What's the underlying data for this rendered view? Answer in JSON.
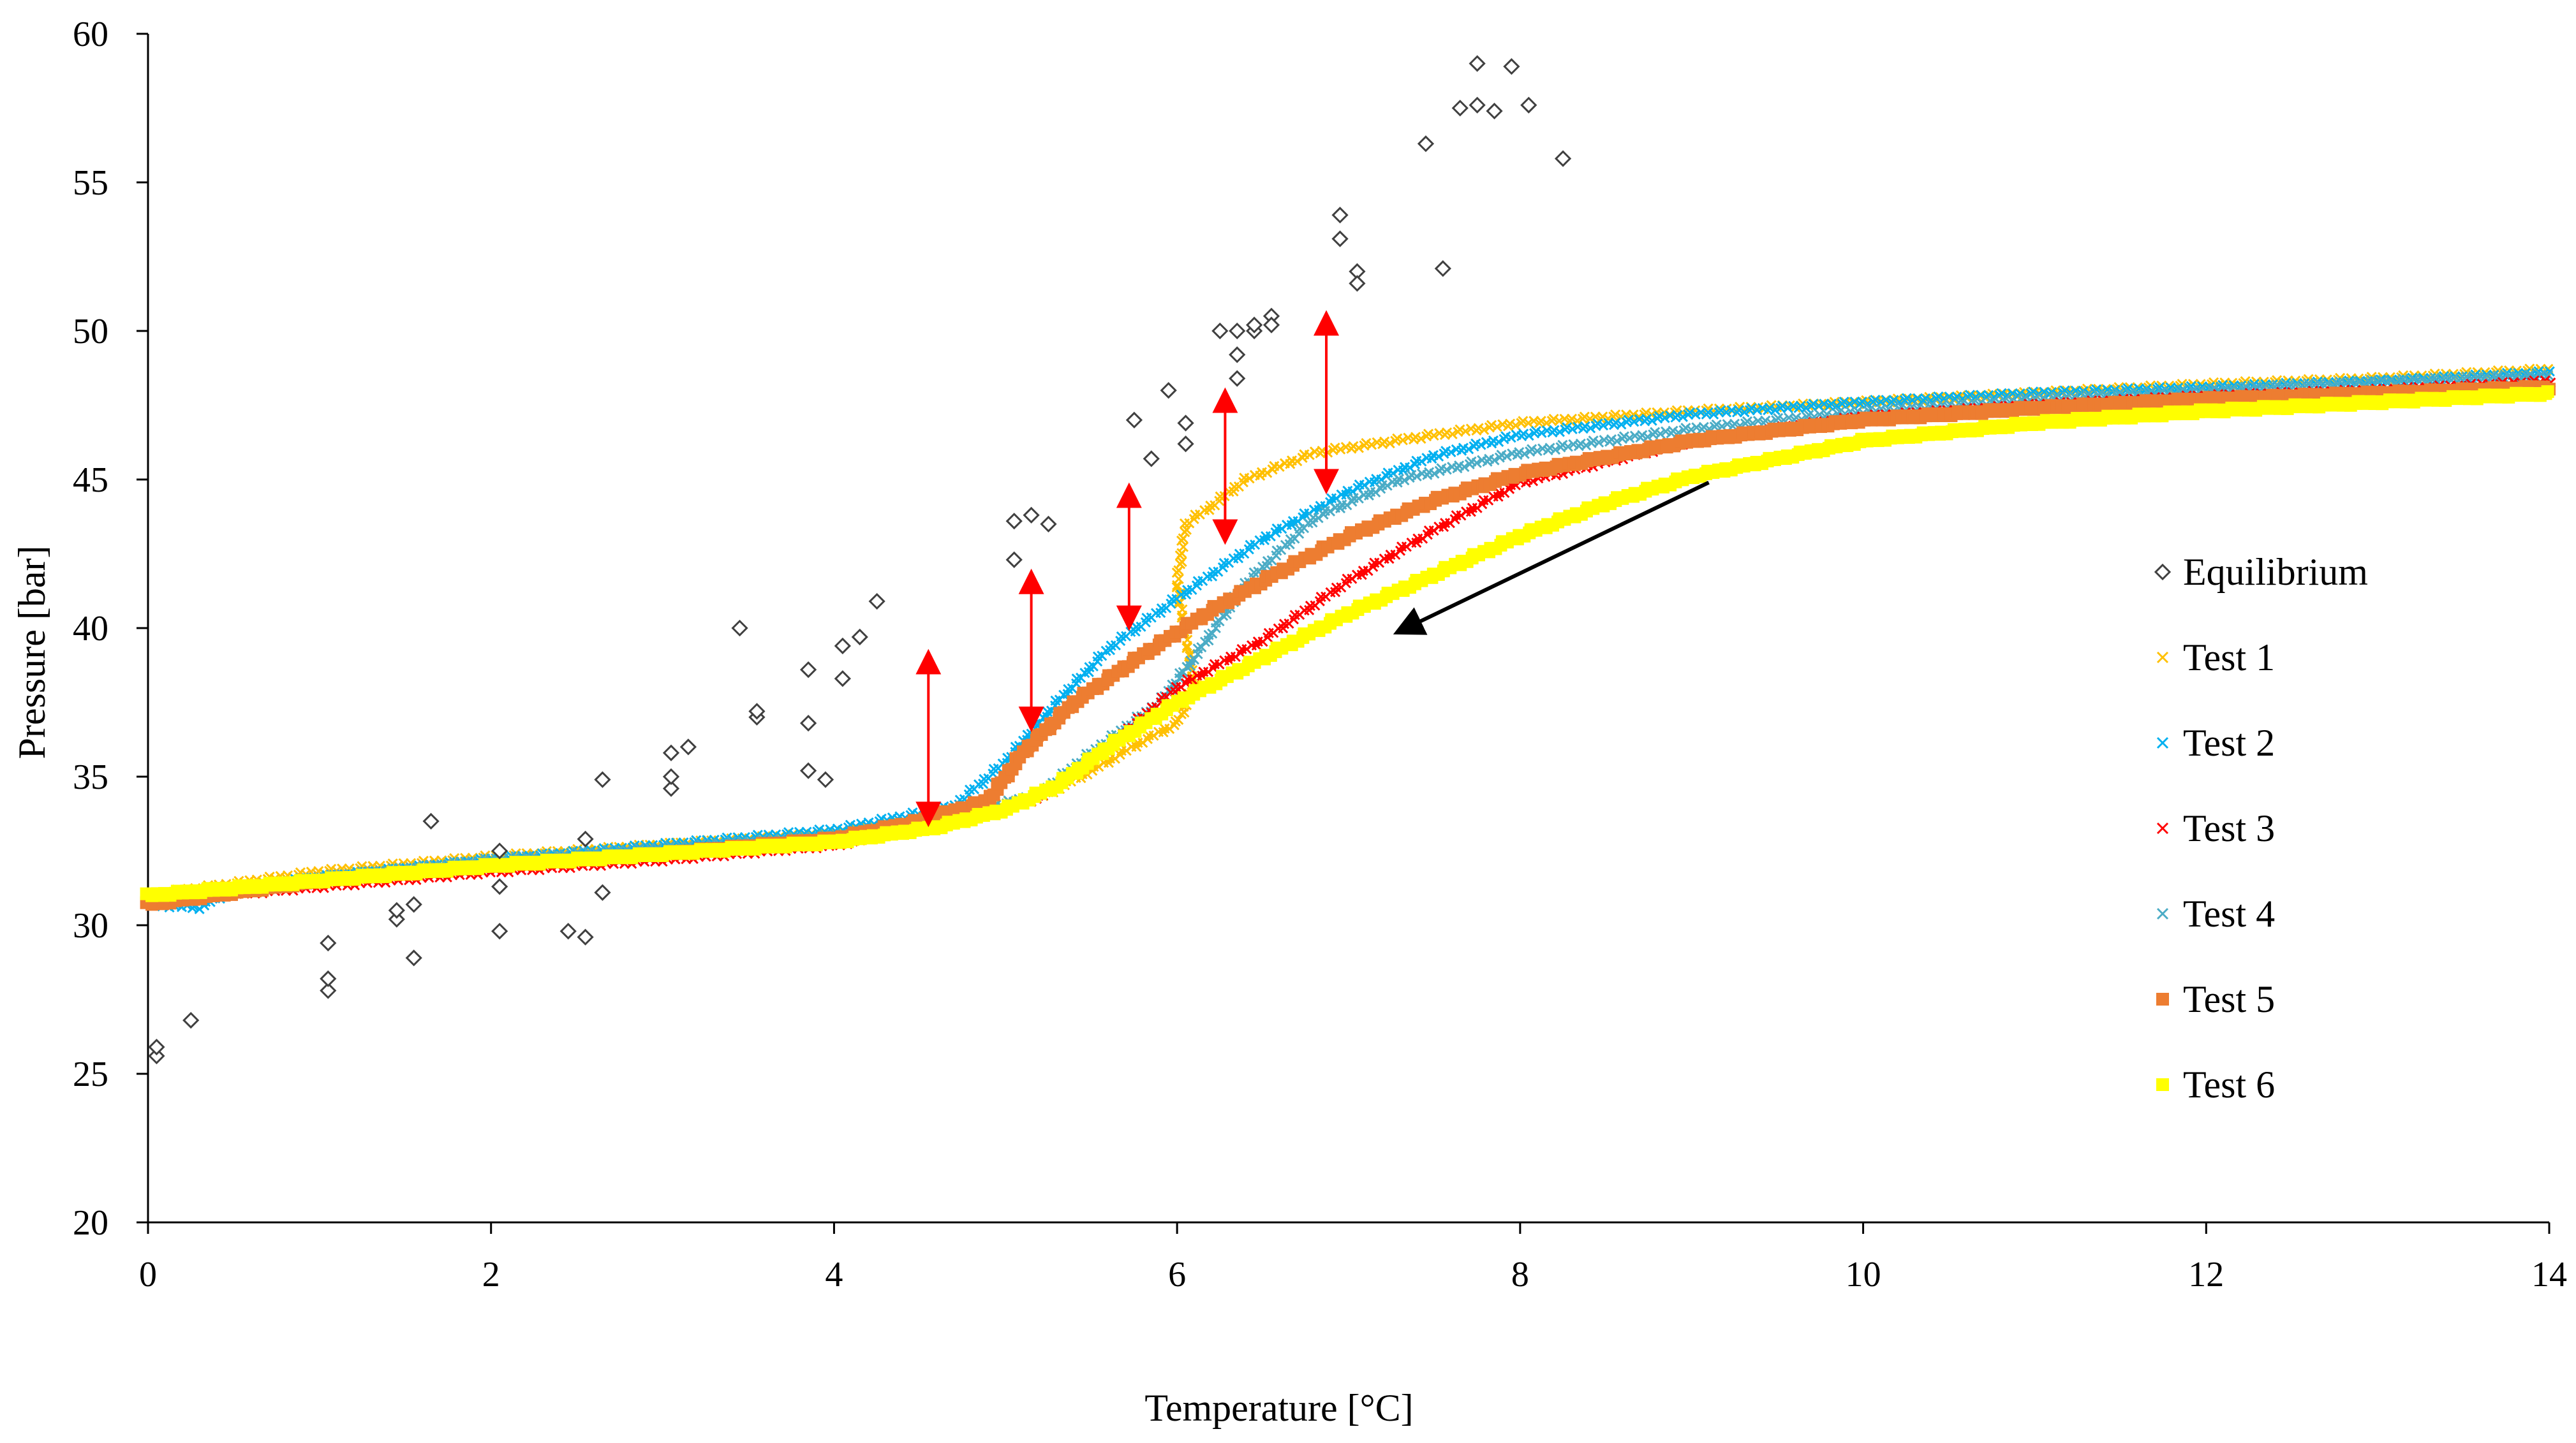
{
  "chart_data": {
    "type": "scatter",
    "title": "",
    "xlabel": "Temperature [°C]",
    "ylabel": "Pressure [bar]",
    "xlim": [
      0,
      14
    ],
    "ylim": [
      20,
      60
    ],
    "xticks": [
      0,
      2,
      4,
      6,
      8,
      10,
      12,
      14
    ],
    "yticks": [
      20,
      25,
      30,
      35,
      40,
      45,
      50,
      55,
      60
    ],
    "grid": false,
    "legend_position": "right",
    "equilibrium": {
      "name": "Equilibrium",
      "marker": "diamond-open",
      "color": "#404040",
      "points": [
        [
          0.05,
          25.6
        ],
        [
          0.05,
          25.9
        ],
        [
          0.25,
          26.8
        ],
        [
          1.05,
          27.8
        ],
        [
          1.05,
          28.2
        ],
        [
          1.05,
          29.4
        ],
        [
          1.45,
          30.2
        ],
        [
          1.45,
          30.5
        ],
        [
          1.55,
          30.7
        ],
        [
          1.55,
          28.9
        ],
        [
          1.65,
          33.5
        ],
        [
          2.05,
          32.5
        ],
        [
          2.05,
          31.3
        ],
        [
          2.05,
          29.8
        ],
        [
          2.45,
          29.8
        ],
        [
          2.55,
          29.6
        ],
        [
          2.55,
          32.9
        ],
        [
          2.65,
          31.1
        ],
        [
          2.65,
          34.9
        ],
        [
          3.05,
          34.6
        ],
        [
          3.05,
          35.0
        ],
        [
          3.05,
          35.8
        ],
        [
          3.15,
          36.0
        ],
        [
          3.45,
          40.0
        ],
        [
          3.55,
          37.0
        ],
        [
          3.55,
          37.2
        ],
        [
          3.85,
          38.6
        ],
        [
          3.85,
          36.8
        ],
        [
          3.85,
          35.2
        ],
        [
          3.95,
          34.9
        ],
        [
          4.05,
          39.4
        ],
        [
          4.05,
          38.3
        ],
        [
          4.15,
          39.7
        ],
        [
          4.25,
          40.9
        ],
        [
          5.05,
          42.3
        ],
        [
          5.05,
          43.6
        ],
        [
          5.15,
          43.8
        ],
        [
          5.25,
          43.5
        ],
        [
          5.75,
          47.0
        ],
        [
          5.85,
          45.7
        ],
        [
          5.95,
          48.0
        ],
        [
          6.05,
          46.9
        ],
        [
          6.05,
          46.2
        ],
        [
          6.25,
          50.0
        ],
        [
          6.35,
          50.0
        ],
        [
          6.35,
          49.2
        ],
        [
          6.35,
          48.4
        ],
        [
          6.45,
          50.0
        ],
        [
          6.45,
          50.2
        ],
        [
          6.55,
          50.5
        ],
        [
          6.55,
          50.2
        ],
        [
          6.95,
          53.9
        ],
        [
          6.95,
          53.1
        ],
        [
          7.05,
          52.0
        ],
        [
          7.05,
          51.6
        ],
        [
          7.45,
          56.3
        ],
        [
          7.55,
          52.1
        ],
        [
          7.65,
          57.5
        ],
        [
          7.75,
          59.0
        ],
        [
          7.75,
          57.6
        ],
        [
          7.85,
          57.4
        ],
        [
          7.95,
          58.9
        ],
        [
          8.05,
          57.6
        ],
        [
          8.25,
          55.8
        ]
      ]
    },
    "series": [
      {
        "name": "Test 1",
        "marker": "x",
        "color": "#ffc000",
        "points": [
          [
            0,
            31.0
          ],
          [
            1,
            31.8
          ],
          [
            2,
            32.3
          ],
          [
            3,
            32.7
          ],
          [
            4,
            33.1
          ],
          [
            4.8,
            33.9
          ],
          [
            5.2,
            34.3
          ],
          [
            5.5,
            35.2
          ],
          [
            5.8,
            36.2
          ],
          [
            6.0,
            36.8
          ],
          [
            6.1,
            38.0
          ],
          [
            6.0,
            41.5
          ],
          [
            6.05,
            43.5
          ],
          [
            6.2,
            44.1
          ],
          [
            6.4,
            45.0
          ],
          [
            6.8,
            45.9
          ],
          [
            7.5,
            46.5
          ],
          [
            8,
            46.9
          ],
          [
            9,
            47.3
          ],
          [
            10,
            47.6
          ],
          [
            11,
            47.9
          ],
          [
            12,
            48.2
          ],
          [
            13,
            48.4
          ],
          [
            14,
            48.7
          ]
        ]
      },
      {
        "name": "Test 2",
        "marker": "x",
        "color": "#00b0f0",
        "points": [
          [
            0,
            30.7
          ],
          [
            0.3,
            30.6
          ],
          [
            0.5,
            31.2
          ],
          [
            1,
            31.6
          ],
          [
            2,
            32.2
          ],
          [
            3,
            32.7
          ],
          [
            4,
            33.2
          ],
          [
            4.7,
            34.0
          ],
          [
            5.0,
            35.5
          ],
          [
            5.3,
            37.5
          ],
          [
            5.6,
            39.3
          ],
          [
            6.0,
            41.0
          ],
          [
            6.5,
            43.0
          ],
          [
            7.0,
            44.6
          ],
          [
            7.5,
            45.8
          ],
          [
            8,
            46.5
          ],
          [
            9,
            47.2
          ],
          [
            10,
            47.6
          ],
          [
            11,
            47.9
          ],
          [
            12,
            48.1
          ],
          [
            13,
            48.3
          ],
          [
            14,
            48.6
          ]
        ]
      },
      {
        "name": "Test 3",
        "marker": "x",
        "color": "#ff0000",
        "points": [
          [
            0,
            30.8
          ],
          [
            1,
            31.3
          ],
          [
            2,
            31.8
          ],
          [
            3,
            32.2
          ],
          [
            4,
            32.7
          ],
          [
            4.8,
            33.6
          ],
          [
            5.2,
            34.3
          ],
          [
            5.6,
            36.0
          ],
          [
            6.0,
            38.0
          ],
          [
            6.5,
            39.6
          ],
          [
            7.0,
            41.6
          ],
          [
            7.5,
            43.3
          ],
          [
            8,
            44.9
          ],
          [
            9,
            46.3
          ],
          [
            10,
            47.1
          ],
          [
            11,
            47.5
          ],
          [
            12,
            47.8
          ],
          [
            13,
            48.0
          ],
          [
            14,
            48.3
          ]
        ]
      },
      {
        "name": "Test 4",
        "marker": "x",
        "color": "#4bacc6",
        "points": [
          [
            0,
            30.9
          ],
          [
            1,
            31.6
          ],
          [
            2,
            32.2
          ],
          [
            3,
            32.6
          ],
          [
            4,
            33.0
          ],
          [
            4.8,
            33.8
          ],
          [
            5.2,
            34.4
          ],
          [
            5.5,
            35.8
          ],
          [
            5.9,
            37.5
          ],
          [
            6.1,
            39.0
          ],
          [
            6.4,
            41.5
          ],
          [
            6.8,
            43.7
          ],
          [
            7.3,
            45.0
          ],
          [
            8,
            45.9
          ],
          [
            9,
            46.7
          ],
          [
            10,
            47.3
          ],
          [
            11,
            47.7
          ],
          [
            12,
            48.0
          ],
          [
            13,
            48.3
          ],
          [
            14,
            48.5
          ]
        ]
      },
      {
        "name": "Test 5",
        "marker": "square",
        "color": "#ed7d31",
        "points": [
          [
            0,
            30.7
          ],
          [
            1,
            31.5
          ],
          [
            2,
            32.0
          ],
          [
            3,
            32.4
          ],
          [
            4,
            32.9
          ],
          [
            4.5,
            33.5
          ],
          [
            4.9,
            34.2
          ],
          [
            5.1,
            35.8
          ],
          [
            5.4,
            37.5
          ],
          [
            5.8,
            39.1
          ],
          [
            6.2,
            40.6
          ],
          [
            6.6,
            41.9
          ],
          [
            7.0,
            43.1
          ],
          [
            7.5,
            44.3
          ],
          [
            8,
            45.2
          ],
          [
            9,
            46.3
          ],
          [
            10,
            47.0
          ],
          [
            11,
            47.4
          ],
          [
            12,
            47.7
          ],
          [
            13,
            47.9
          ],
          [
            14,
            48.1
          ]
        ]
      },
      {
        "name": "Test 6",
        "marker": "square",
        "color": "#ffff00",
        "points": [
          [
            0,
            31.0
          ],
          [
            1,
            31.5
          ],
          [
            2,
            32.0
          ],
          [
            3,
            32.4
          ],
          [
            4,
            32.8
          ],
          [
            4.6,
            33.3
          ],
          [
            5.0,
            33.9
          ],
          [
            5.3,
            34.7
          ],
          [
            5.6,
            36.0
          ],
          [
            6.0,
            37.5
          ],
          [
            6.5,
            39.0
          ],
          [
            7.0,
            40.5
          ],
          [
            7.5,
            41.8
          ],
          [
            8,
            43.1
          ],
          [
            8.5,
            44.2
          ],
          [
            9,
            45.1
          ],
          [
            10,
            46.3
          ],
          [
            11,
            46.9
          ],
          [
            12,
            47.3
          ],
          [
            13,
            47.6
          ],
          [
            14,
            47.9
          ]
        ]
      }
    ],
    "annotations": {
      "red_double_arrows": [
        {
          "x": 4.55,
          "y1": 33.6,
          "y2": 39.0
        },
        {
          "x": 5.15,
          "y1": 36.8,
          "y2": 41.7
        },
        {
          "x": 5.72,
          "y1": 40.2,
          "y2": 44.6
        },
        {
          "x": 6.28,
          "y1": 43.1,
          "y2": 47.8
        },
        {
          "x": 6.87,
          "y1": 44.8,
          "y2": 50.4
        }
      ],
      "black_arrow": {
        "x_from": 9.1,
        "y_from": 44.9,
        "x_to": 7.3,
        "y_to": 39.9
      }
    }
  }
}
